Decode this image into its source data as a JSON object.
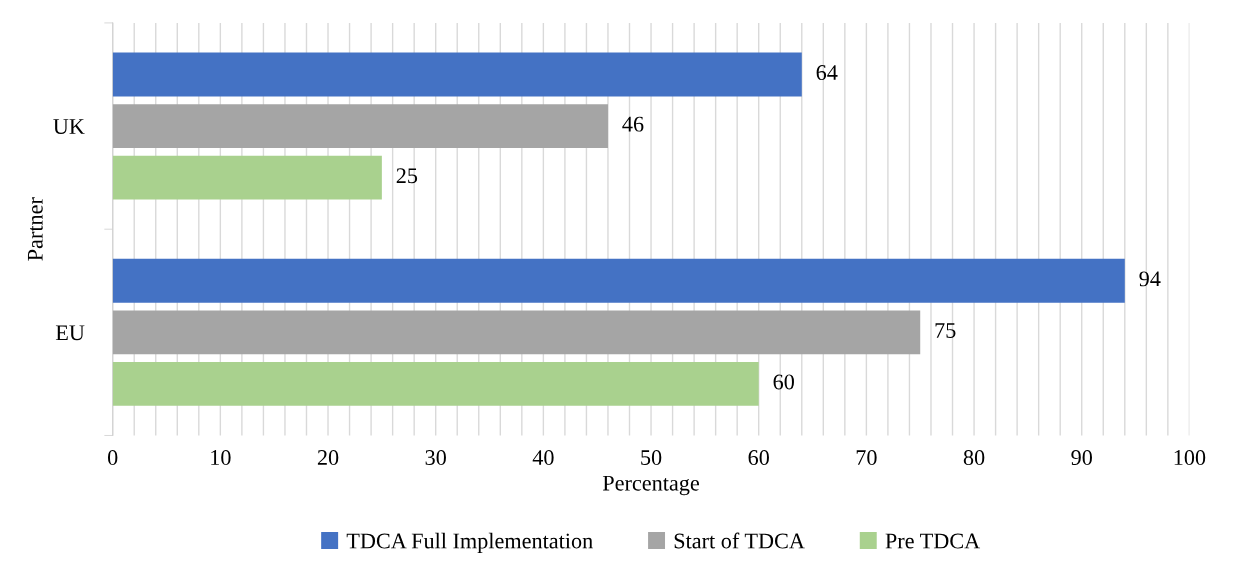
{
  "chart_data": {
    "type": "bar",
    "orientation": "horizontal",
    "xlabel": "Percentage",
    "ylabel": "Partner",
    "categories": [
      "UK",
      "EU"
    ],
    "series": [
      {
        "name": "TDCA Full Implementation",
        "color": "#4472c4",
        "values": [
          64,
          94
        ]
      },
      {
        "name": "Start of TDCA",
        "color": "#a5a5a5",
        "values": [
          46,
          75
        ]
      },
      {
        "name": "Pre TDCA",
        "color": "#a9d18e",
        "values": [
          25,
          60
        ]
      }
    ],
    "xlim": [
      0,
      100
    ],
    "xticks": [
      0,
      {
        "value": 2,
        "label": null
      },
      {
        "value": 4,
        "label": null
      },
      {
        "value": 6,
        "label": null
      },
      {
        "value": 8,
        "label": null
      },
      10,
      {
        "value": 12,
        "label": null
      },
      {
        "value": 14,
        "label": null
      },
      {
        "value": 16,
        "label": null
      },
      {
        "value": 18,
        "label": null
      },
      20,
      {
        "value": 22,
        "label": null
      },
      {
        "value": 24,
        "label": null
      },
      {
        "value": 26,
        "label": null
      },
      {
        "value": 28,
        "label": null
      },
      30,
      {
        "value": 32,
        "label": null
      },
      {
        "value": 34,
        "label": null
      },
      {
        "value": 36,
        "label": null
      },
      {
        "value": 38,
        "label": null
      },
      40,
      {
        "value": 42,
        "label": null
      },
      {
        "value": 44,
        "label": null
      },
      {
        "value": 46,
        "label": null
      },
      {
        "value": 48,
        "label": null
      },
      50,
      {
        "value": 52,
        "label": null
      },
      {
        "value": 54,
        "label": null
      },
      {
        "value": 56,
        "label": null
      },
      {
        "value": 58,
        "label": null
      },
      60,
      {
        "value": 62,
        "label": null
      },
      {
        "value": 64,
        "label": null
      },
      {
        "value": 66,
        "label": null
      },
      {
        "value": 68,
        "label": null
      },
      70,
      {
        "value": 72,
        "label": null
      },
      {
        "value": 74,
        "label": null
      },
      {
        "value": 76,
        "label": null
      },
      {
        "value": 78,
        "label": null
      },
      80,
      {
        "value": 82,
        "label": null
      },
      {
        "value": 84,
        "label": null
      },
      {
        "value": 86,
        "label": null
      },
      {
        "value": 88,
        "label": null
      },
      90,
      {
        "value": 92,
        "label": null
      },
      {
        "value": 94,
        "label": null
      },
      {
        "value": 96,
        "label": null
      },
      {
        "value": 98,
        "label": null
      },
      100
    ],
    "grid": "x",
    "legend": "bottom",
    "data_labels": true
  }
}
